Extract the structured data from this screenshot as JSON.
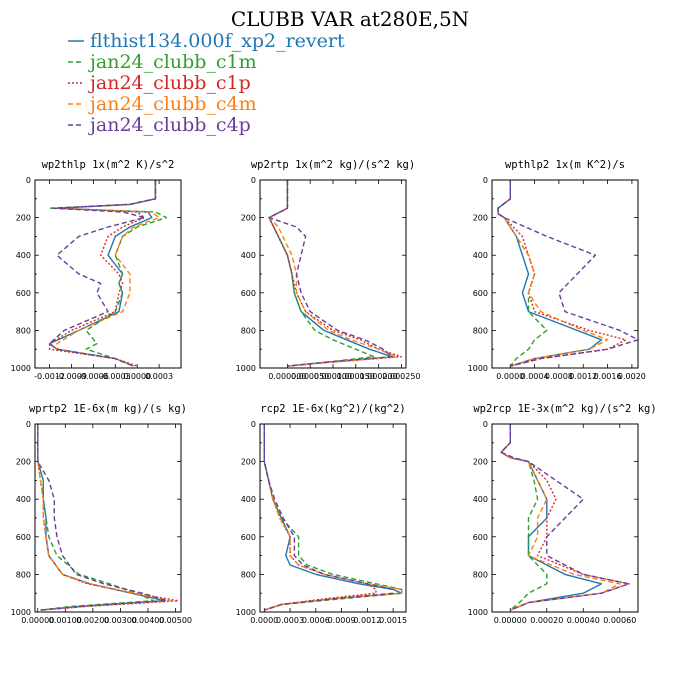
{
  "title": "CLUBB VAR at280E,5N",
  "colors": [
    "#1f77b4",
    "#2ca02c",
    "#d62728",
    "#ff7f0e",
    "#6a3d9a"
  ],
  "legend": [
    {
      "label": "flthist134.000f_xp2_revert",
      "color": "#1f77b4",
      "dash": "solid"
    },
    {
      "label": "jan24_clubb_c1m",
      "color": "#2ca02c",
      "dash": "dashed"
    },
    {
      "label": "jan24_clubb_c1p",
      "color": "#d62728",
      "dash": "dotted"
    },
    {
      "label": "jan24_clubb_c4m",
      "color": "#ff7f0e",
      "dash": "dashed"
    },
    {
      "label": "jan24_clubb_c4p",
      "color": "#6a3d9a",
      "dash": "dashed"
    }
  ],
  "chart_data": [
    {
      "type": "line",
      "title": "wp2thlp 1x(m^2 K)/s^2",
      "xlim": [
        -0.0014,
        0.0006
      ],
      "ylim": [
        1000,
        0
      ],
      "y_reversed": true,
      "xticks": [
        "-0.0012",
        "-0.0009",
        "-0.0006",
        "-0.0003",
        "0.0000",
        "0.0003"
      ],
      "xtick_values": [
        -0.0012,
        -0.0009,
        -0.0006,
        -0.0003,
        0.0,
        0.0003
      ],
      "yticks": [
        0,
        200,
        400,
        600,
        800,
        1000
      ],
      "y": [
        0,
        100,
        130,
        150,
        170,
        200,
        250,
        300,
        400,
        500,
        550,
        600,
        700,
        800,
        870,
        900,
        950,
        990
      ],
      "series": [
        {
          "name": "flthist134.000f_xp2_revert",
          "x": [
            0.00025,
            0.00025,
            -0.0001,
            -0.0011,
            0.00015,
            0.0002,
            -0.0001,
            -0.0003,
            -0.0004,
            -0.0002,
            -0.00025,
            -0.0002,
            -0.00025,
            -0.0008,
            -0.0012,
            -0.0011,
            -0.0003,
            -5e-05
          ]
        },
        {
          "name": "jan24_clubb_c1m",
          "x": [
            0.00025,
            0.00025,
            -0.0001,
            -0.0012,
            0.00025,
            0.0004,
            0.0,
            -0.0002,
            -0.0003,
            -0.0002,
            -0.00025,
            -0.0002,
            -0.0003,
            -0.0007,
            -0.00055,
            -0.0007,
            -0.0003,
            -5e-05
          ]
        },
        {
          "name": "jan24_clubb_c1p",
          "x": [
            0.00025,
            0.00025,
            -0.0001,
            -0.0011,
            0.0,
            0.0001,
            -0.0002,
            -0.0004,
            -0.0005,
            -0.00025,
            -0.0002,
            -0.00025,
            -0.0003,
            -0.0009,
            -0.0012,
            -0.0012,
            -0.0003,
            0.0
          ]
        },
        {
          "name": "jan24_clubb_c4m",
          "x": [
            0.00025,
            0.00025,
            -0.0001,
            -0.0011,
            0.0002,
            0.0003,
            -5e-05,
            -0.0002,
            -0.0003,
            -0.0001,
            -0.0001,
            -0.0001,
            -0.0002,
            -0.0008,
            -0.0011,
            -0.0011,
            -0.0003,
            -5e-05
          ]
        },
        {
          "name": "jan24_clubb_c4p",
          "x": [
            0.00025,
            0.00025,
            -0.0001,
            -0.00115,
            -0.0002,
            0.0001,
            -0.0004,
            -0.0008,
            -0.0011,
            -0.0008,
            -0.0005,
            -0.00055,
            -0.0004,
            -0.001,
            -0.0012,
            -0.0011,
            -0.0003,
            -5e-05
          ]
        }
      ]
    },
    {
      "type": "line",
      "title": "wp2rtp 1x(m^2 kg)/(s^2 kg)",
      "xlim": [
        -6e-05,
        0.00026
      ],
      "ylim": [
        1000,
        0
      ],
      "y_reversed": true,
      "xticks": [
        "0.000000",
        "0.000050",
        "0.000100",
        "0.000150",
        "0.000200",
        "0.000250"
      ],
      "xtick_values": [
        0.0,
        5e-05,
        0.0001,
        0.00015,
        0.0002,
        0.00025
      ],
      "yticks": [
        0,
        200,
        400,
        600,
        800,
        1000
      ],
      "y": [
        0,
        150,
        200,
        250,
        300,
        400,
        500,
        600,
        700,
        800,
        850,
        900,
        940,
        970,
        990
      ],
      "series": [
        {
          "name": "flthist134.000f_xp2_revert",
          "x": [
            0.0,
            0.0,
            -4e-05,
            -3e-05,
            -2e-05,
            0.0,
            1e-05,
            1.5e-05,
            3e-05,
            8e-05,
            0.00013,
            0.00018,
            0.00023,
            8e-05,
            0.0
          ]
        },
        {
          "name": "jan24_clubb_c1m",
          "x": [
            0.0,
            0.0,
            -4e-05,
            -3e-05,
            -2e-05,
            0.0,
            1e-05,
            1.5e-05,
            3e-05,
            6e-05,
            0.0001,
            0.00015,
            0.00019,
            8e-05,
            0.0
          ]
        },
        {
          "name": "jan24_clubb_c1p",
          "x": [
            0.0,
            0.0,
            -4e-05,
            -3e-05,
            -2e-05,
            0.0,
            1e-05,
            2e-05,
            4e-05,
            0.0001,
            0.00016,
            0.0002,
            0.00025,
            9e-05,
            0.0
          ]
        },
        {
          "name": "jan24_clubb_c4m",
          "x": [
            0.0,
            0.0,
            -4e-05,
            -2e-05,
            -1e-05,
            1e-05,
            2e-05,
            2e-05,
            4e-05,
            9e-05,
            0.00014,
            0.0002,
            0.00024,
            9e-05,
            0.0
          ]
        },
        {
          "name": "jan24_clubb_c4p",
          "x": [
            0.0,
            0.0,
            -4e-05,
            2e-05,
            4e-05,
            3e-05,
            2e-05,
            3e-05,
            5e-05,
            0.00011,
            0.00017,
            0.00021,
            0.00023,
            8e-05,
            0.0
          ]
        }
      ]
    },
    {
      "type": "line",
      "title": "wpthlp2 1x(m K^2)/s",
      "xlim": [
        -0.0003,
        0.0021
      ],
      "ylim": [
        1000,
        0
      ],
      "y_reversed": true,
      "xticks": [
        "0.0000",
        "0.0004",
        "0.0008",
        "0.0012",
        "0.0016",
        "0.0020"
      ],
      "xtick_values": [
        0.0,
        0.0004,
        0.0008,
        0.0012,
        0.0016,
        0.002
      ],
      "yticks": [
        0,
        200,
        400,
        600,
        800,
        1000
      ],
      "y": [
        0,
        100,
        150,
        180,
        200,
        300,
        400,
        500,
        600,
        700,
        800,
        850,
        900,
        950,
        990
      ],
      "series": [
        {
          "name": "flthist134.000f_xp2_revert",
          "x": [
            0.0,
            0.0,
            -0.0002,
            -0.0002,
            -0.0001,
            0.0001,
            0.0002,
            0.0003,
            0.0002,
            0.0003,
            0.0011,
            0.0015,
            0.0013,
            0.0004,
            0.0
          ]
        },
        {
          "name": "jan24_clubb_c1m",
          "x": [
            0.0,
            0.0,
            -0.0002,
            -0.0002,
            -0.0001,
            0.0001,
            0.0003,
            0.0004,
            0.0003,
            0.0003,
            0.0006,
            0.0004,
            0.0003,
            0.0001,
            0.0
          ]
        },
        {
          "name": "jan24_clubb_c1p",
          "x": [
            0.0,
            0.0,
            -0.0002,
            -0.0002,
            -0.0001,
            0.0002,
            0.0003,
            0.0004,
            0.0003,
            0.0004,
            0.0013,
            0.0019,
            0.0016,
            0.0005,
            0.0
          ]
        },
        {
          "name": "jan24_clubb_c4m",
          "x": [
            0.0,
            0.0,
            -0.0002,
            -0.0002,
            -0.0001,
            0.0001,
            0.0003,
            0.0004,
            0.0003,
            0.0005,
            0.0012,
            0.0016,
            0.0013,
            0.0004,
            0.0
          ]
        },
        {
          "name": "jan24_clubb_c4p",
          "x": [
            0.0,
            0.0,
            -0.0002,
            -0.0002,
            -0.0001,
            0.0006,
            0.0014,
            0.0011,
            0.0008,
            0.0009,
            0.0018,
            0.0021,
            0.0016,
            0.0005,
            0.0
          ]
        }
      ]
    },
    {
      "type": "line",
      "title": "wprtp2 1E-6x(m kg)/(s kg)",
      "xlim": [
        -0.0001,
        0.0052
      ],
      "ylim": [
        1000,
        0
      ],
      "y_reversed": true,
      "xticks": [
        "0.00000",
        "0.00100",
        "0.00200",
        "0.00300",
        "0.00400",
        "0.00500"
      ],
      "xtick_values": [
        0.0,
        0.001,
        0.002,
        0.003,
        0.004,
        0.005
      ],
      "yticks": [
        0,
        200,
        400,
        600,
        800,
        1000
      ],
      "y": [
        0,
        200,
        300,
        400,
        500,
        600,
        700,
        800,
        850,
        900,
        940,
        970,
        990
      ],
      "series": [
        {
          "name": "flthist134.000f_xp2_revert",
          "x": [
            0.0,
            0.0,
            0.0002,
            0.0002,
            0.0003,
            0.0003,
            0.0004,
            0.0009,
            0.0019,
            0.0034,
            0.0046,
            0.0015,
            0.0001
          ]
        },
        {
          "name": "jan24_clubb_c1m",
          "x": [
            0.0,
            0.0,
            0.0002,
            0.0002,
            0.0003,
            0.0004,
            0.0007,
            0.0015,
            0.0026,
            0.0036,
            0.0042,
            0.0012,
            0.0001
          ]
        },
        {
          "name": "jan24_clubb_c1p",
          "x": [
            0.0,
            0.0,
            0.0001,
            0.0002,
            0.0002,
            0.0003,
            0.0004,
            0.0009,
            0.0018,
            0.0035,
            0.0051,
            0.0018,
            0.0001
          ]
        },
        {
          "name": "jan24_clubb_c4m",
          "x": [
            0.0,
            0.0,
            0.0001,
            0.0002,
            0.0002,
            0.0003,
            0.0004,
            0.0009,
            0.0019,
            0.0035,
            0.0048,
            0.0016,
            0.0001
          ]
        },
        {
          "name": "jan24_clubb_c4p",
          "x": [
            0.0,
            0.0,
            0.0004,
            0.0006,
            0.0006,
            0.0007,
            0.0009,
            0.0014,
            0.0024,
            0.0038,
            0.0047,
            0.0016,
            0.0001
          ]
        }
      ]
    },
    {
      "type": "line",
      "title": "rcp2 1E-6x(kg^2)/(kg^2)",
      "xlim": [
        -5e-05,
        0.00165
      ],
      "ylim": [
        1000,
        0
      ],
      "y_reversed": true,
      "xticks": [
        "0.0000",
        "0.0003",
        "0.0006",
        "0.0009",
        "0.0012",
        "0.0015"
      ],
      "xtick_values": [
        0.0,
        0.0003,
        0.0006,
        0.0009,
        0.0012,
        0.0015
      ],
      "yticks": [
        0,
        200,
        400,
        600,
        800,
        1000
      ],
      "y": [
        0,
        200,
        300,
        400,
        500,
        600,
        700,
        750,
        800,
        850,
        880,
        900,
        930,
        960,
        990
      ],
      "series": [
        {
          "name": "flthist134.000f_xp2_revert",
          "x": [
            0.0,
            0.0,
            5e-05,
            0.0001,
            0.0002,
            0.0003,
            0.00025,
            0.0003,
            0.0006,
            0.0011,
            0.0015,
            0.0016,
            0.0008,
            0.0002,
            0.0
          ]
        },
        {
          "name": "jan24_clubb_c1m",
          "x": [
            0.0,
            0.0,
            5e-05,
            0.0001,
            0.0002,
            0.0004,
            0.0004,
            0.0005,
            0.0008,
            0.0013,
            0.0016,
            0.0016,
            0.0009,
            0.0002,
            0.0
          ]
        },
        {
          "name": "jan24_clubb_c1p",
          "x": [
            0.0,
            0.0,
            5e-05,
            0.0001,
            0.00018,
            0.0003,
            0.0003,
            0.0004,
            0.0007,
            0.0012,
            0.0013,
            0.0013,
            0.0007,
            0.0002,
            0.0
          ]
        },
        {
          "name": "jan24_clubb_c4m",
          "x": [
            0.0,
            0.0,
            5e-05,
            0.0001,
            0.00018,
            0.0003,
            0.0003,
            0.0004,
            0.0007,
            0.0012,
            0.0016,
            0.0016,
            0.0008,
            0.0002,
            0.0
          ]
        },
        {
          "name": "jan24_clubb_c4p",
          "x": [
            0.0,
            0.0,
            5e-05,
            0.00012,
            0.00022,
            0.00035,
            0.00035,
            0.00045,
            0.0007,
            0.0012,
            0.0015,
            0.0015,
            0.0008,
            0.0002,
            0.0
          ]
        }
      ]
    },
    {
      "type": "line",
      "title": "wp2rcp 1E-3x(m^2 kg)/(s^2 kg)",
      "xlim": [
        -0.0001,
        0.0007
      ],
      "ylim": [
        1000,
        0
      ],
      "y_reversed": true,
      "xticks": [
        "0.00000",
        "0.00020",
        "0.00040",
        "0.00060"
      ],
      "xtick_values": [
        0.0,
        0.0002,
        0.0004,
        0.0006
      ],
      "yticks": [
        0,
        200,
        400,
        600,
        800,
        1000
      ],
      "y": [
        0,
        100,
        150,
        180,
        200,
        300,
        400,
        500,
        600,
        700,
        800,
        850,
        900,
        950,
        990
      ],
      "series": [
        {
          "name": "flthist134.000f_xp2_revert",
          "x": [
            0.0,
            0.0,
            -5e-05,
            0.0,
            0.0001,
            0.00015,
            0.0002,
            0.0002,
            0.0001,
            0.0001,
            0.0003,
            0.0005,
            0.0004,
            0.0001,
            0.0
          ]
        },
        {
          "name": "jan24_clubb_c1m",
          "x": [
            0.0,
            0.0,
            -5e-05,
            0.0,
            0.0001,
            0.00013,
            0.00015,
            0.0001,
            0.0001,
            0.0001,
            0.0002,
            0.0002,
            0.0001,
            5e-05,
            0.0
          ]
        },
        {
          "name": "jan24_clubb_c1p",
          "x": [
            0.0,
            0.0,
            -5e-05,
            0.0,
            0.0001,
            0.0002,
            0.00025,
            0.0002,
            0.0002,
            0.00015,
            0.0004,
            0.00065,
            0.0005,
            0.0001,
            0.0
          ]
        },
        {
          "name": "jan24_clubb_c4m",
          "x": [
            0.0,
            0.0,
            -5e-05,
            0.0,
            0.0001,
            0.00015,
            0.0002,
            0.00015,
            0.00015,
            0.0001,
            0.00035,
            0.0006,
            0.0005,
            0.0001,
            0.0
          ]
        },
        {
          "name": "jan24_clubb_c4p",
          "x": [
            0.0,
            0.0,
            -5e-05,
            2e-05,
            0.0001,
            0.00025,
            0.0004,
            0.0003,
            0.0002,
            0.0002,
            0.0004,
            0.00065,
            0.0005,
            0.0001,
            0.0
          ]
        }
      ]
    }
  ]
}
